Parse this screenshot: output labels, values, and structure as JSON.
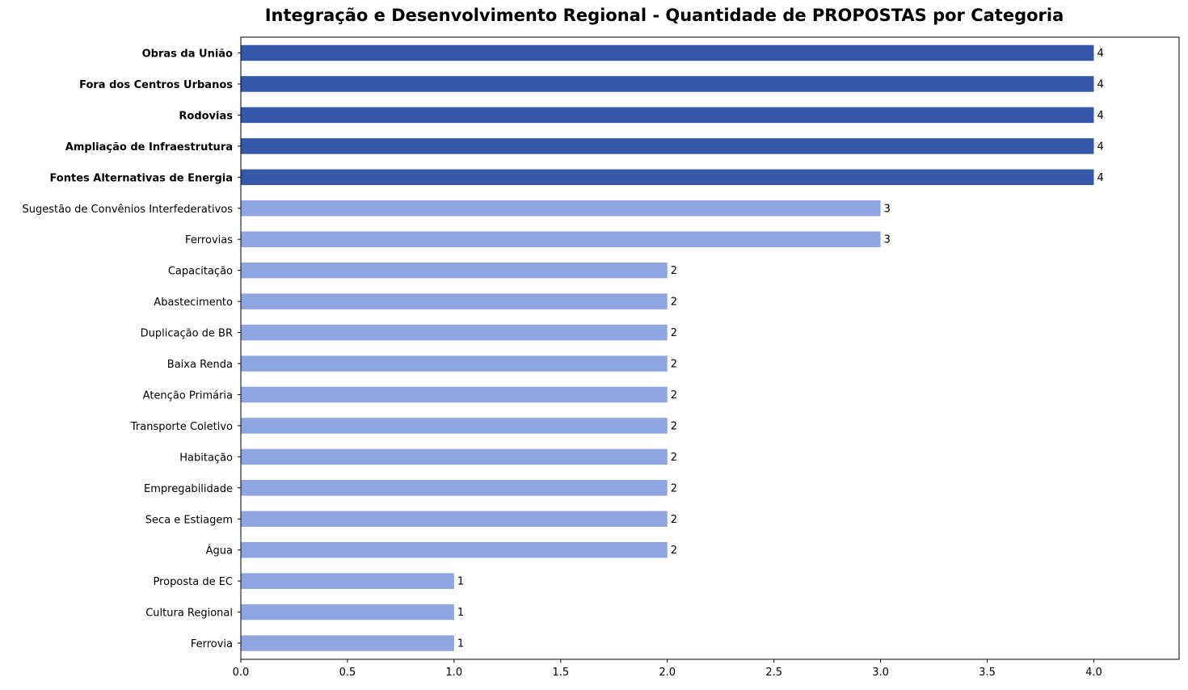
{
  "chart_data": {
    "type": "bar",
    "orientation": "horizontal",
    "title": "Integração e Desenvolvimento Regional - Quantidade de PROPOSTAS por Categoria",
    "xlabel": "",
    "ylabel": "",
    "xlim": [
      0,
      4.4
    ],
    "xticks": [
      0.0,
      0.5,
      1.0,
      1.5,
      2.0,
      2.5,
      3.0,
      3.5,
      4.0
    ],
    "xtick_labels": [
      "0.0",
      "0.5",
      "1.0",
      "1.5",
      "2.0",
      "2.5",
      "3.0",
      "3.5",
      "4.0"
    ],
    "grid": false,
    "legend": "none",
    "colors": {
      "highlight": "#3558a8",
      "default": "#8fa5e2",
      "axis": "#000000",
      "text": "#000000"
    },
    "categories": [
      "Obras da União",
      "Fora dos Centros Urbanos",
      "Rodovias",
      "Ampliação de Infraestrutura",
      "Fontes Alternativas de Energia",
      "Sugestão de Convênios Interfederativos",
      "Ferrovias",
      "Capacitação",
      "Abastecimento",
      "Duplicação de BR",
      "Baixa Renda",
      "Atenção Primária",
      "Transporte Coletivo",
      "Habitação",
      "Empregabilidade",
      "Seca e Estiagem",
      "Água",
      "Proposta de EC",
      "Cultura Regional",
      "Ferrovia"
    ],
    "values": [
      4,
      4,
      4,
      4,
      4,
      3,
      3,
      2,
      2,
      2,
      2,
      2,
      2,
      2,
      2,
      2,
      2,
      1,
      1,
      1
    ],
    "data_labels": [
      "4",
      "4",
      "4",
      "4",
      "4",
      "3",
      "3",
      "2",
      "2",
      "2",
      "2",
      "2",
      "2",
      "2",
      "2",
      "2",
      "2",
      "1",
      "1",
      "1"
    ],
    "highlighted": [
      true,
      true,
      true,
      true,
      true,
      false,
      false,
      false,
      false,
      false,
      false,
      false,
      false,
      false,
      false,
      false,
      false,
      false,
      false,
      false
    ]
  }
}
